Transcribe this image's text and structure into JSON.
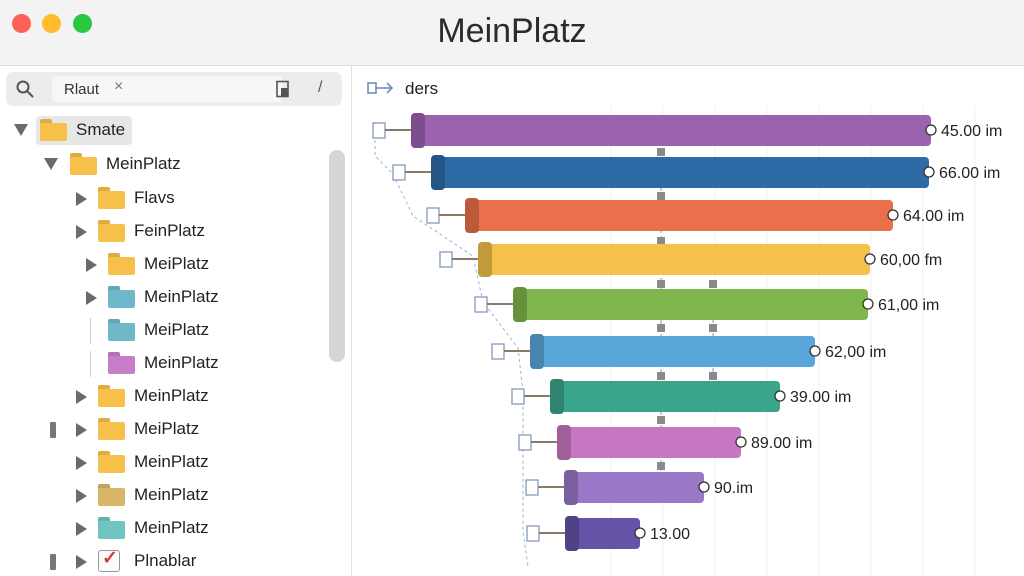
{
  "window": {
    "title": "MeinPlatz"
  },
  "sidebar": {
    "search": {
      "token": "Rlaut",
      "clear_symbol": "×",
      "slash": "/"
    },
    "tree": [
      {
        "label": "Smate",
        "expanded": true,
        "color": "#f6c04b",
        "selected": true
      },
      {
        "label": "MeinPlatz",
        "expanded": true,
        "color": "#f6c04b"
      },
      {
        "label": "Flavs",
        "expanded": false,
        "color": "#f6c04b"
      },
      {
        "label": "FeinPlatz",
        "expanded": false,
        "color": "#f6c04b"
      },
      {
        "label": "MeiPlatz",
        "expanded": false,
        "color": "#f6c04b"
      },
      {
        "label": "MeinPlatz",
        "expanded": false,
        "color": "#6fb8c9"
      },
      {
        "label": "MeiPlatz",
        "color": "#6fb8c9"
      },
      {
        "label": "MeinPlatz",
        "color": "#c77dc7"
      },
      {
        "label": "MeinPlatz",
        "expanded": false,
        "color": "#f6c04b"
      },
      {
        "label": "MeiPlatz",
        "expanded": false,
        "color": "#f6c04b"
      },
      {
        "label": "MeinPlatz",
        "expanded": false,
        "color": "#f6c04b"
      },
      {
        "label": "MeinPlatz",
        "expanded": false,
        "color": "#d9b56a"
      },
      {
        "label": "MeinPlatz",
        "expanded": false,
        "color": "#6fc6c0"
      },
      {
        "label": "Plnablar",
        "expanded": false,
        "icon": "checklist-icon"
      }
    ]
  },
  "chart_header": {
    "label": "ders",
    "icon": "link-arrow-icon"
  },
  "chart_data": {
    "type": "bar",
    "orientation": "horizontal",
    "bars": [
      {
        "label": "45.00 im",
        "value": 45.0,
        "color": "#9b62b0"
      },
      {
        "label": "66.00 im",
        "value": 66.0,
        "color": "#2e6aa6"
      },
      {
        "label": "64.00 im",
        "value": 64.0,
        "color": "#e9704a"
      },
      {
        "label": "60,00 fm",
        "value": 60.0,
        "color": "#f4c14a"
      },
      {
        "label": "61,00 im",
        "value": 61.0,
        "color": "#7fb64e"
      },
      {
        "label": "62,00 im",
        "value": 62.0,
        "color": "#5aa6da"
      },
      {
        "label": "39.00 im",
        "value": 39.0,
        "color": "#3aa58a"
      },
      {
        "label": "89.00 im",
        "value": 89.0,
        "color": "#c777c2"
      },
      {
        "label": "90.im",
        "value": 90,
        "color": "#9a78c7"
      },
      {
        "label": "13.00",
        "value": 13.0,
        "color": "#6553a8"
      }
    ]
  }
}
